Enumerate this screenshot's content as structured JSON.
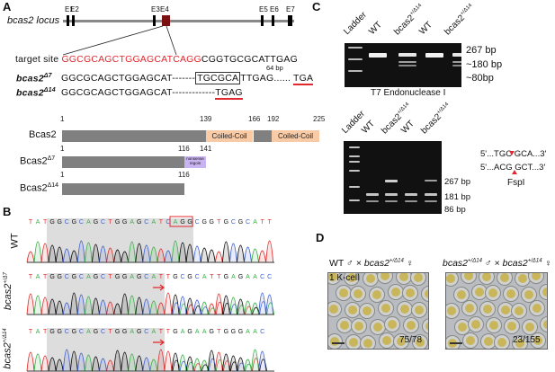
{
  "panel_labels": {
    "a": "A",
    "b": "B",
    "c": "C",
    "d": "D"
  },
  "panel_a": {
    "locus_label": "bcas2 locus",
    "exons": [
      "E1",
      "E2",
      "E3",
      "E4",
      "E5",
      "E6",
      "E7"
    ],
    "target_label": "target site",
    "target_red": "GGCGCAGCTGGAGCATCAGG",
    "target_black": "CGGTGCGCATTGAG",
    "d7_label": "bcas2",
    "d7_sup": "Δ7",
    "d7_seq_a": "GGCGCAGCTGGAGCAT",
    "d7_dash": "-------",
    "d7_box": "TGCGCA",
    "d7_seq_b": "TTGAG",
    "d7_dots": "......",
    "d7_gap": "64 bp",
    "d7_stop": "TGA",
    "d14_label": "bcas2",
    "d14_sup": "Δ14",
    "d14_seq": "GGCGCAGCTGGAGCAT",
    "d14_dash": "-------------",
    "d14_stop": "TGAG",
    "proteins": {
      "wt": {
        "name": "Bcas2",
        "sup": "",
        "ticks": [
          "1",
          "139",
          "166",
          "192",
          "225"
        ],
        "domains": [
          "Coiled-Coil",
          "Coiled-Coil"
        ]
      },
      "d7": {
        "name": "Bcas2",
        "sup": "Δ7",
        "ticks": [
          "1",
          "116",
          "141"
        ],
        "region": "nonsense regoin"
      },
      "d14": {
        "name": "Bcas2",
        "sup": "Δ14",
        "ticks": [
          "1",
          "116"
        ]
      }
    },
    "colors": {
      "target": "#e0282e",
      "exon4": "#7a1010",
      "protein": "#808080",
      "coil": "#f9caa6",
      "nonsense": "#c9b3f0"
    }
  },
  "panel_b": {
    "traces": [
      {
        "label": "WT",
        "sup": "",
        "seq": "TATGGCGCAGCTGGAGCATCAGGCGGTGCGCATT"
      },
      {
        "label": "bcas2",
        "sup": "+/Δ7",
        "seq": "TATGGCGCAGCTGGAGCATTGCGCATTGAGAACC"
      },
      {
        "label": "bcas2",
        "sup": "+/Δ14",
        "seq": "TATGGCGCAGCTGGAGCATTGAGAAGTGGGAAC"
      }
    ],
    "base_colors": {
      "A": "#3cb04a",
      "C": "#3f5fd0",
      "G": "#111111",
      "T": "#e03030"
    }
  },
  "panel_c": {
    "gel1": {
      "lanes": [
        "Ladder",
        "WT",
        "bcas2",
        "WT",
        "bcas2"
      ],
      "lane_sup": "+/Δ14",
      "sizes": [
        "267 bp",
        "~180 bp",
        "~80bp"
      ],
      "caption": "T7 Endonuclease I"
    },
    "gel2": {
      "lanes": [
        "Ladder",
        "WT",
        "bcas2",
        "WT",
        "bcas2"
      ],
      "lane_sup": "+/Δ14",
      "sizes": [
        "267 bp",
        "181 bp",
        "86 bp"
      ]
    },
    "site_top": "5'...TGC GCA...3'",
    "site_bottom": "5'...ACG GCT...3'",
    "enzyme": "FspI"
  },
  "panel_d": {
    "photos": [
      {
        "title_a": "WT ♂ × ",
        "title_b": "bcas2",
        "title_sup": "+/Δ14",
        "title_c": " ♀",
        "stage": "1 K-cell",
        "count": "75/78"
      },
      {
        "title_a": "",
        "title_b": "bcas2",
        "title_sup": "+/Δ14",
        "title_c": " ♂ × ",
        "title_d": "bcas2",
        "title_sup2": "+/Δ14",
        "title_e": " ♀",
        "count": "23/155"
      }
    ]
  }
}
